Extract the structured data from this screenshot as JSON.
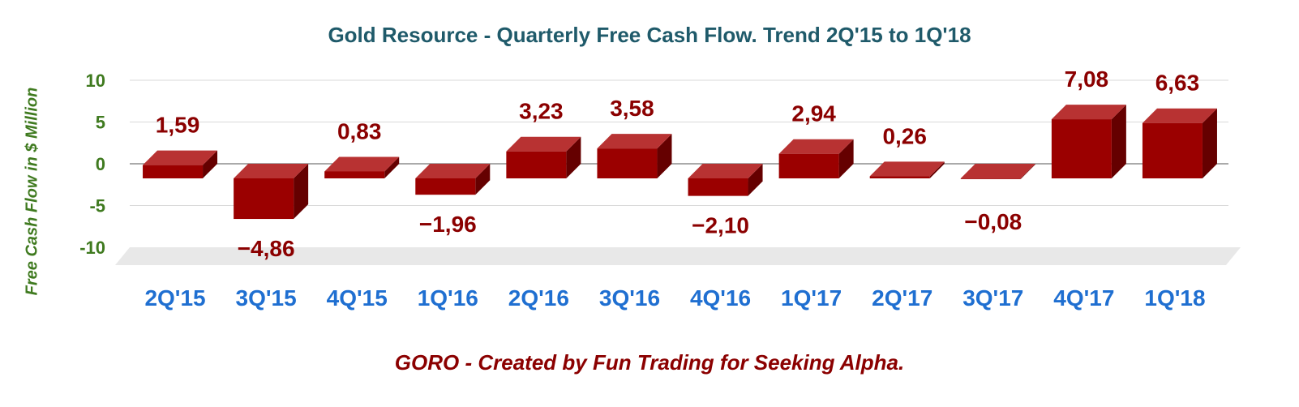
{
  "chart_data": {
    "type": "bar",
    "title": "Gold Resource - Quarterly Free Cash Flow. Trend 2Q'15 to 1Q'18",
    "ylabel": "Free Cash Flow in $ Million",
    "xlabel": "",
    "footer": "GORO - Created by Fun Trading for Seeking Alpha.",
    "categories": [
      "2Q'15",
      "3Q'15",
      "4Q'15",
      "1Q'16",
      "2Q'16",
      "3Q'16",
      "4Q'16",
      "1Q'17",
      "2Q'17",
      "3Q'17",
      "4Q'17",
      "1Q'18"
    ],
    "values": [
      1.59,
      -4.86,
      0.83,
      -1.96,
      3.23,
      3.58,
      -2.1,
      2.94,
      0.26,
      -0.08,
      7.08,
      6.63
    ],
    "value_labels": [
      "1,59",
      "−4,86",
      "0,83",
      "−1,96",
      "3,23",
      "3,58",
      "−2,10",
      "2,94",
      "0,26",
      "−0,08",
      "7,08",
      "6,63"
    ],
    "yticks": [
      "10",
      "5",
      "0",
      "-5",
      "-10"
    ],
    "ylim": [
      -10,
      10
    ],
    "grid": true,
    "style": "3d-bar",
    "colors": {
      "bar_front": "#9b0000",
      "bar_top": "#b83232",
      "bar_side": "#650000",
      "title": "#1f5a6a",
      "ytick": "#3f7a1f",
      "xtick": "#1f6fd1",
      "data_label": "#8b0000"
    }
  }
}
